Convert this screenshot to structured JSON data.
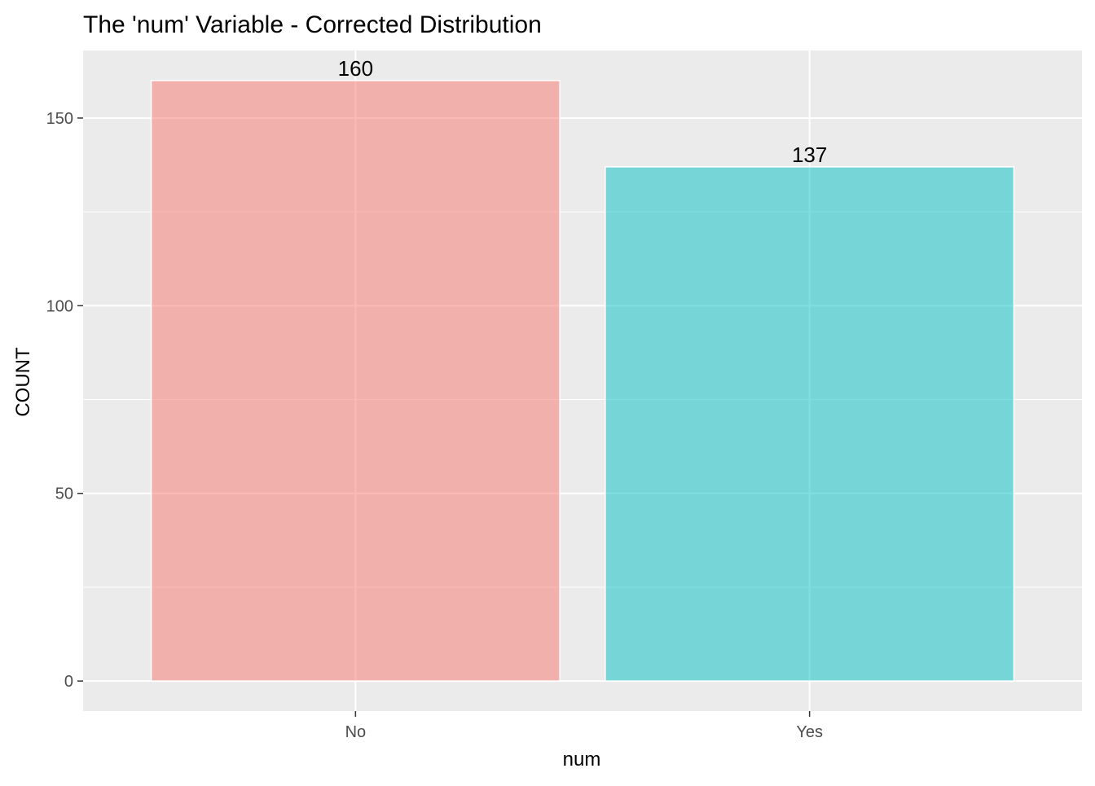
{
  "chart_data": {
    "type": "bar",
    "title": "The 'num' Variable - Corrected Distribution",
    "xlabel": "num",
    "ylabel": "COUNT",
    "categories": [
      "No",
      "Yes"
    ],
    "values": [
      160,
      137
    ],
    "data_labels": [
      "160",
      "137"
    ],
    "colors": [
      "#F8766D",
      "#00BFC4"
    ],
    "bar_opacity": 0.5,
    "ylim": [
      -8,
      168
    ],
    "yticks": [
      0,
      50,
      100,
      150
    ],
    "ytick_labels": [
      "0",
      "50",
      "100",
      "150"
    ],
    "grid": true,
    "legend": "none",
    "panel_background": "#EBEBEB"
  }
}
